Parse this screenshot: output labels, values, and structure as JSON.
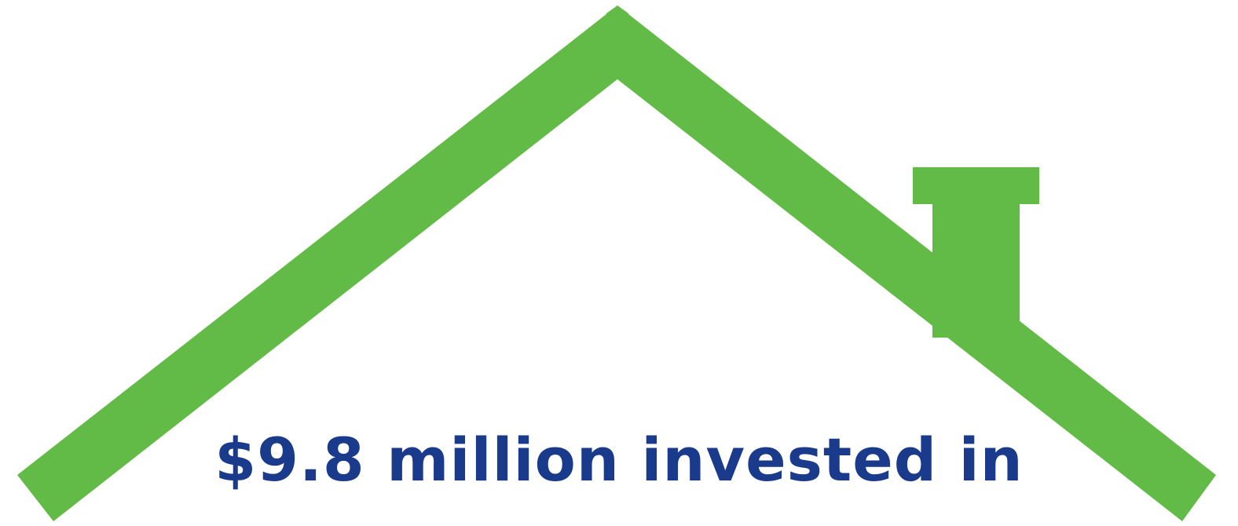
{
  "headline": {
    "text": "$9.8 million invested in",
    "color": "#1a3a8c"
  },
  "graphic": {
    "icon": "house-roof-with-chimney-icon",
    "color": "#63bb47"
  }
}
